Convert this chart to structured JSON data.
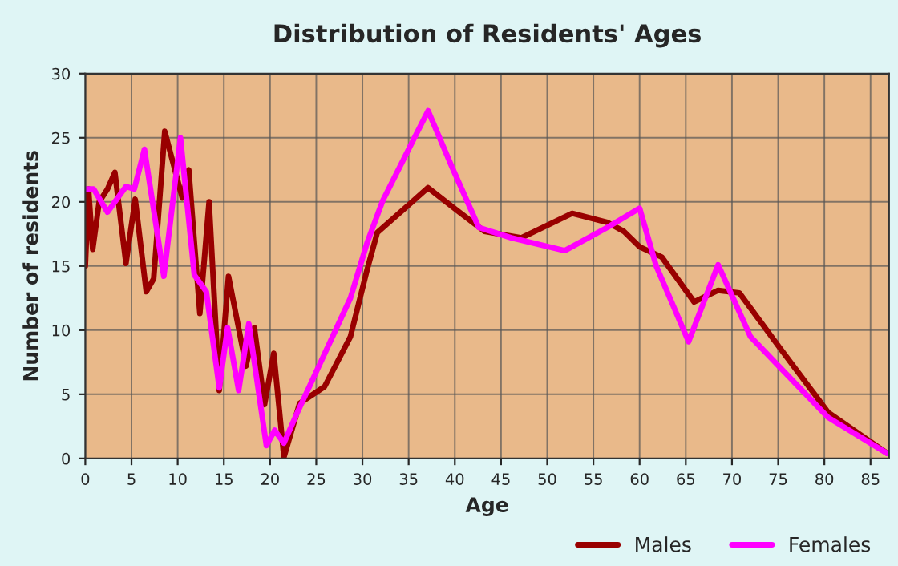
{
  "chart_data": {
    "type": "line",
    "title": "Distribution of Residents' Ages",
    "xlabel": "Age",
    "ylabel": "Number of residents",
    "xlim": [
      0,
      87
    ],
    "xticks": [
      0,
      5,
      10,
      15,
      20,
      25,
      30,
      35,
      40,
      45,
      50,
      55,
      60,
      65,
      70,
      75,
      80,
      85
    ],
    "ylim": [
      0,
      30
    ],
    "yticks": [
      0,
      5,
      10,
      15,
      20,
      25,
      30
    ],
    "grid": true,
    "legend": "bottom right",
    "marker": "none",
    "line_style": "solid",
    "series": [
      {
        "name": "Males",
        "color": "#990000",
        "x": [
          0,
          0.35,
          0.8,
          1.5,
          2.4,
          3.2,
          4.4,
          5.4,
          6.6,
          7.4,
          8.6,
          10.5,
          11.2,
          12.4,
          13.4,
          14.5,
          15.5,
          17.4,
          18.3,
          19.4,
          20.4,
          21.5,
          23.2,
          25.9,
          28.7,
          30.5,
          31.6,
          37.1,
          40.3,
          43.2,
          47.2,
          52.7,
          56.5,
          58.3,
          60,
          62.4,
          65.9,
          68.5,
          70.8,
          75.2,
          80.4,
          86.8
        ],
        "values": [
          15,
          21,
          16.3,
          20,
          21,
          22.3,
          15.2,
          20.2,
          13,
          14,
          25.5,
          20.3,
          22.5,
          11.3,
          20,
          5.3,
          14.2,
          7.2,
          10.2,
          4.2,
          8.2,
          0.1,
          4.3,
          5.6,
          9.5,
          14.7,
          17.6,
          21.1,
          19.3,
          17.7,
          17.2,
          19.1,
          18.4,
          17.7,
          16.5,
          15.7,
          12.2,
          13.1,
          12.9,
          8.6,
          3.6,
          0.4
        ]
      },
      {
        "name": "Females",
        "color": "#ff00ff",
        "x": [
          0,
          0.9,
          2.4,
          4.4,
          5.3,
          6.4,
          8.5,
          10.3,
          11.8,
          13.1,
          14.5,
          15.4,
          16.6,
          17.7,
          19.6,
          20.5,
          21.5,
          22.9,
          28.7,
          30.5,
          32.2,
          37.1,
          39.7,
          42.6,
          46.1,
          51.9,
          56.5,
          60,
          61.8,
          65.3,
          68.5,
          72,
          80.4,
          86.8
        ],
        "values": [
          21,
          21,
          19.2,
          21.2,
          21,
          24.1,
          14.2,
          25,
          14.3,
          13,
          5.5,
          10.2,
          5.3,
          10.5,
          1,
          2.2,
          1.2,
          3.5,
          12.5,
          16.8,
          20.1,
          27.1,
          22.7,
          18,
          17.2,
          16.2,
          18,
          19.5,
          15,
          9.1,
          15.1,
          9.5,
          3.2,
          0.4
        ]
      }
    ]
  }
}
